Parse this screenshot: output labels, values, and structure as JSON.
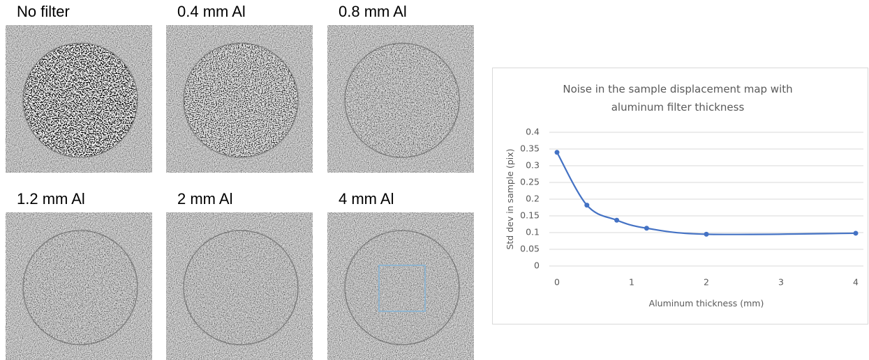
{
  "panels": [
    {
      "label": "No filter"
    },
    {
      "label": "0.4 mm Al"
    },
    {
      "label": "0.8 mm Al"
    },
    {
      "label": "1.2 mm Al"
    },
    {
      "label": "2 mm Al"
    },
    {
      "label": "4 mm Al"
    }
  ],
  "chart_data": {
    "type": "line",
    "title": "Noise in the sample displacement map with aluminum filter thickness",
    "x_label": "Aluminum thickness (mm)",
    "y_label": "Std dev in sample (pix)",
    "x": [
      0,
      0.4,
      0.8,
      1.2,
      2,
      4
    ],
    "series": [
      {
        "color": "#4472c4",
        "values": [
          0.34,
          0.182,
          0.137,
          0.113,
          0.095,
          0.098
        ]
      }
    ],
    "xlim": [
      0,
      4
    ],
    "xticks": [
      0,
      1,
      2,
      3,
      4
    ],
    "ylim": [
      0,
      0.4
    ],
    "yticks": [
      0,
      0.05,
      0.1,
      0.15,
      0.2,
      0.25,
      0.3,
      0.35,
      0.4
    ],
    "grid": true,
    "smooth": true
  }
}
